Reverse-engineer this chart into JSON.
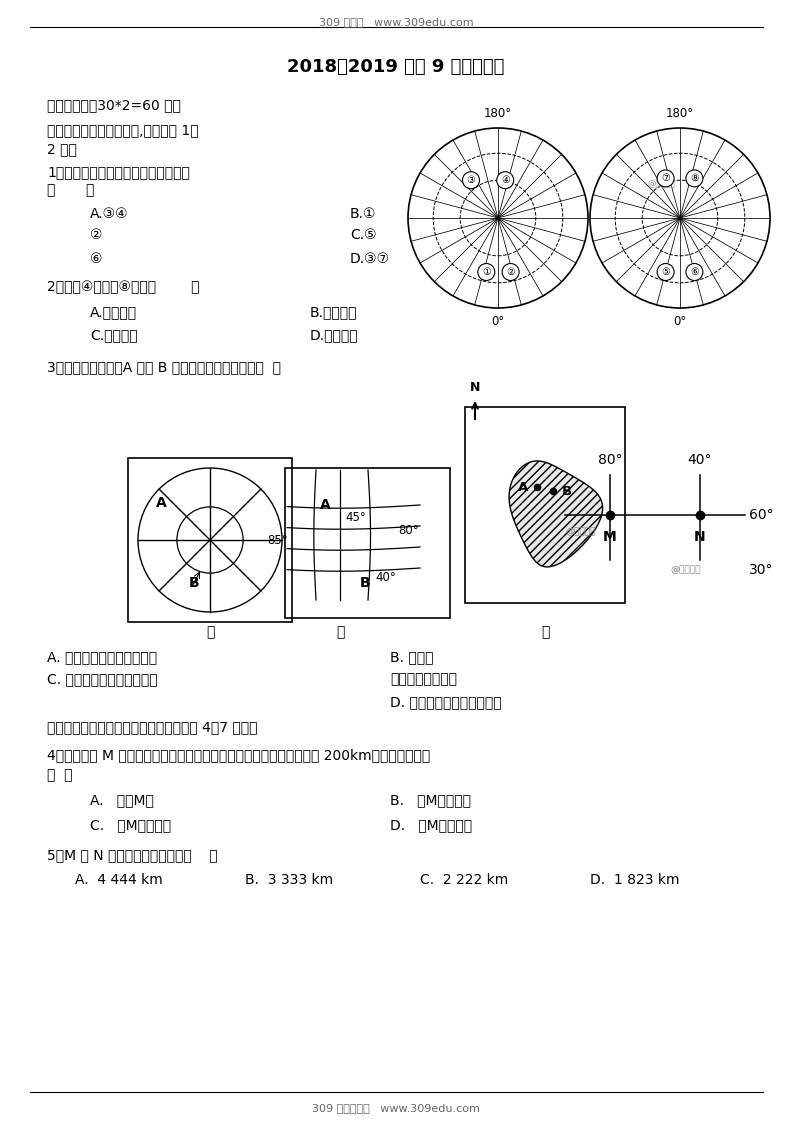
{
  "header_text": "309 教育网   www.309edu.com",
  "footer_text": "309 教育资源库   www.309edu.com",
  "title": "2018－2019 高三 9 月地理月考",
  "section1": "一、选择题（30*2=60 分）",
  "q1_intro1": "下图是地球经纬网示意图,读图判断 1～",
  "q1_intro2": "2 题。",
  "q1_text": "1、图中各点位于北半球、西半球的是",
  "q1_paren": "（       ）",
  "q1_a": "A.③④",
  "q1_b1": "B.①",
  "q1_b2": "②",
  "q1_c1": "C.⑤",
  "q1_c2": "⑥",
  "q1_d": "D.③⑦",
  "q2_text": "2、图中④点位于⑧点的（        ）",
  "q2_a": "A.东北方向",
  "q2_b": "B.西北方向",
  "q2_c": "C.东南方向",
  "q2_d": "D.西南方向",
  "q3_text": "3、下面四幅图中，A 点在 B 点的方向排列正确的是（  ）",
  "label_jia": "甲",
  "label_yi": "乙",
  "label_bing": "丙",
  "q3_a": "A. 西北、东北、西南、西北",
  "q3_b1": "B. 西北、",
  "q3_b2": "西北、西南、西南",
  "q3_c": "C. 西南、东北、西北、西北",
  "q3_d": "D. 东北、西北、西北、西南",
  "intro2": "读地球表面某区域的经纬网示意图，回答 4－7 小题。",
  "q4_text": "4、若某人从 M 点出发，依次向正东、正南、正西和正北方向分别前进 200km，则其最终位置",
  "q4_paren": "（  ）",
  "q4_a": "A.   回到M点",
  "q4_b": "B.   在M点正东方",
  "q4_c": "C.   在M点正西方",
  "q4_d": "D.   在M点东南方",
  "q5_text": "5、M 和 N 两点的实地距离约是（    ）",
  "q5_a": "A.  4 444 km",
  "q5_b": "B.  3 333 km",
  "q5_c": "C.  2 222 km",
  "q5_d": "D.  1 823 km",
  "wm1": "@正确教育",
  "wm2": "@正确教育",
  "wm3": "@正确教育"
}
